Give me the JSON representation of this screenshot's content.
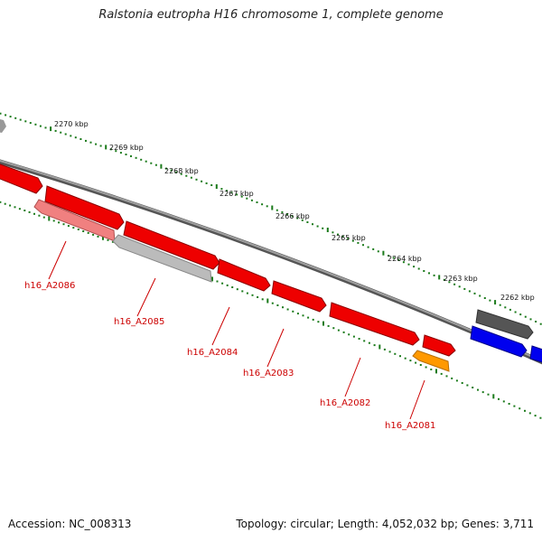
{
  "title": "Ralstonia eutropha H16 chromosome 1, complete genome",
  "footer": {
    "accession": "Accession: NC_008313",
    "summary": "Topology: circular; Length: 4,052,032 bp; Genes: 3,711"
  },
  "colors": {
    "ticks": "#1a7a1a",
    "backbone": "#777777",
    "label": "#cc0000"
  },
  "scale_labels": [
    "2270 kbp",
    "2269 kbp",
    "2268 kbp",
    "2267 kbp",
    "2266 kbp",
    "2265 kbp",
    "2264 kbp",
    "2263 kbp",
    "2262 kbp"
  ],
  "features": [
    {
      "color": "#999999",
      "strand": "forward",
      "label": ""
    },
    {
      "color": "#ee0000",
      "strand": "forward",
      "label": ""
    },
    {
      "color": "#ee0000",
      "strand": "forward",
      "label": ""
    },
    {
      "color": "#ee0000",
      "strand": "forward",
      "label": ""
    },
    {
      "color": "#ee0000",
      "strand": "forward",
      "label": ""
    },
    {
      "color": "#ee0000",
      "strand": "forward",
      "label": ""
    },
    {
      "color": "#ee0000",
      "strand": "forward",
      "label": ""
    },
    {
      "color": "#ee0000",
      "strand": "forward",
      "label": ""
    },
    {
      "color": "#f08080",
      "strand": "reverse",
      "label": "h16_A2086"
    },
    {
      "color": "#bbbbbb",
      "strand": "reverse",
      "label": "h16_A2085"
    },
    {
      "color": "#ff9900",
      "strand": "reverse",
      "label": "h16_A2081"
    },
    {
      "color": "#555555",
      "strand": "forward",
      "label": ""
    },
    {
      "color": "#0000ee",
      "strand": "forward",
      "label": ""
    },
    {
      "color": "#0000ee",
      "strand": "forward",
      "label": ""
    }
  ],
  "gene_labels": [
    "h16_A2086",
    "h16_A2085",
    "h16_A2084",
    "h16_A2083",
    "h16_A2082",
    "h16_A2081"
  ]
}
